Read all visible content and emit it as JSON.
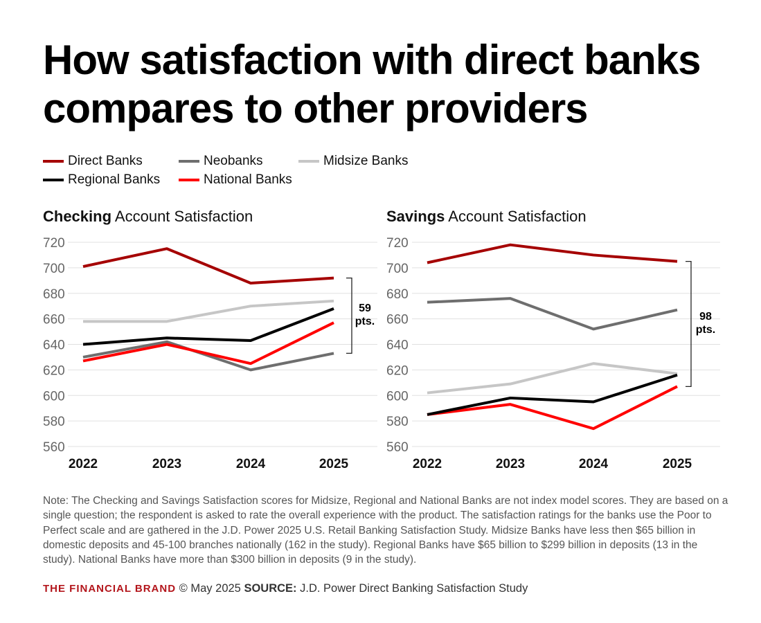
{
  "title": "How satisfaction with direct banks compares to other providers",
  "legend": [
    {
      "name": "Direct Banks",
      "color": "#a50000"
    },
    {
      "name": "Neobanks",
      "color": "#6e6e6e"
    },
    {
      "name": "Midsize Banks",
      "color": "#c6c6c6"
    },
    {
      "name": "Regional Banks",
      "color": "#000000"
    },
    {
      "name": "National Banks",
      "color": "#ff0000"
    }
  ],
  "chart_data": [
    {
      "type": "line",
      "title_bold": "Checking",
      "title_rest": " Account Satisfaction",
      "categories": [
        "2022",
        "2023",
        "2024",
        "2025"
      ],
      "ylim": [
        560,
        720
      ],
      "yticks": [
        720,
        700,
        680,
        660,
        640,
        620,
        600,
        580,
        560
      ],
      "grid": true,
      "series": [
        {
          "name": "Direct Banks",
          "values": [
            701,
            715,
            688,
            692
          ]
        },
        {
          "name": "Neobanks",
          "values": [
            630,
            642,
            620,
            633
          ]
        },
        {
          "name": "Midsize Banks",
          "values": [
            658,
            658,
            670,
            674
          ]
        },
        {
          "name": "Regional Banks",
          "values": [
            640,
            645,
            643,
            668
          ]
        },
        {
          "name": "National Banks",
          "values": [
            627,
            640,
            625,
            657
          ]
        }
      ],
      "annotation": {
        "line1": "59",
        "line2": "pts.",
        "from": 692,
        "to": 633
      }
    },
    {
      "type": "line",
      "title_bold": "Savings",
      "title_rest": " Account Satisfaction",
      "categories": [
        "2022",
        "2023",
        "2024",
        "2025"
      ],
      "ylim": [
        560,
        720
      ],
      "yticks": [
        720,
        700,
        680,
        660,
        640,
        620,
        600,
        580,
        560
      ],
      "grid": true,
      "series": [
        {
          "name": "Direct Banks",
          "values": [
            704,
            718,
            710,
            705
          ]
        },
        {
          "name": "Neobanks",
          "values": [
            673,
            676,
            652,
            667
          ]
        },
        {
          "name": "Midsize Banks",
          "values": [
            602,
            609,
            625,
            617
          ]
        },
        {
          "name": "Regional Banks",
          "values": [
            585,
            598,
            595,
            616
          ]
        },
        {
          "name": "National Banks",
          "values": [
            585,
            593,
            574,
            607
          ]
        }
      ],
      "annotation": {
        "line1": "98",
        "line2": "pts.",
        "from": 705,
        "to": 607
      }
    }
  ],
  "note": "Note: The Checking and Savings Satisfaction scores for Midsize, Regional and National Banks are not index model scores. They are based on a single question; the respondent is asked to rate the overall experience with the product. The satisfaction ratings for the banks use the Poor to Perfect scale and are gathered in the J.D. Power 2025 U.S. Retail Banking Satisfaction Study. Midsize Banks have less then $65 billion in domestic deposits and 45-100 branches nationally (162 in the study). Regional Banks have $65 billion to $299 billion in deposits (13 in the study). National Banks have more than $300 billion in deposits (9 in the study).",
  "footer": {
    "brand": "THE FINANCIAL BRAND",
    "date": " © May 2025 ",
    "source_label": "SOURCE:",
    "source": " J.D. Power Direct Banking Satisfaction Study"
  }
}
